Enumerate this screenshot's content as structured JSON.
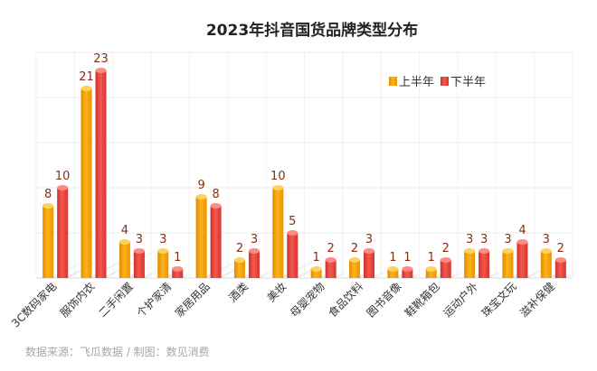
{
  "chart_data": {
    "type": "bar",
    "title": "2023年抖音国货品牌类型分布",
    "categories": [
      "3C数码家电",
      "服饰内衣",
      "二手闲置",
      "个护家清",
      "家居用品",
      "酒类",
      "美妆",
      "母婴宠物",
      "食品饮料",
      "图书音像",
      "鞋靴箱包",
      "运动户外",
      "珠宝文玩",
      "滋补保健"
    ],
    "series": [
      {
        "name": "上半年",
        "color": "#f5a000",
        "values": [
          8,
          21,
          4,
          3,
          9,
          2,
          10,
          1,
          2,
          1,
          1,
          3,
          3,
          3
        ]
      },
      {
        "name": "下半年",
        "color": "#e8423a",
        "values": [
          10,
          23,
          3,
          1,
          8,
          3,
          5,
          2,
          3,
          1,
          2,
          3,
          4,
          2
        ]
      }
    ],
    "ylim": [
      0,
      25
    ],
    "grid": true,
    "legend": "top-right"
  },
  "source_text": "数据来源：飞瓜数据 / 制图：数见消费"
}
